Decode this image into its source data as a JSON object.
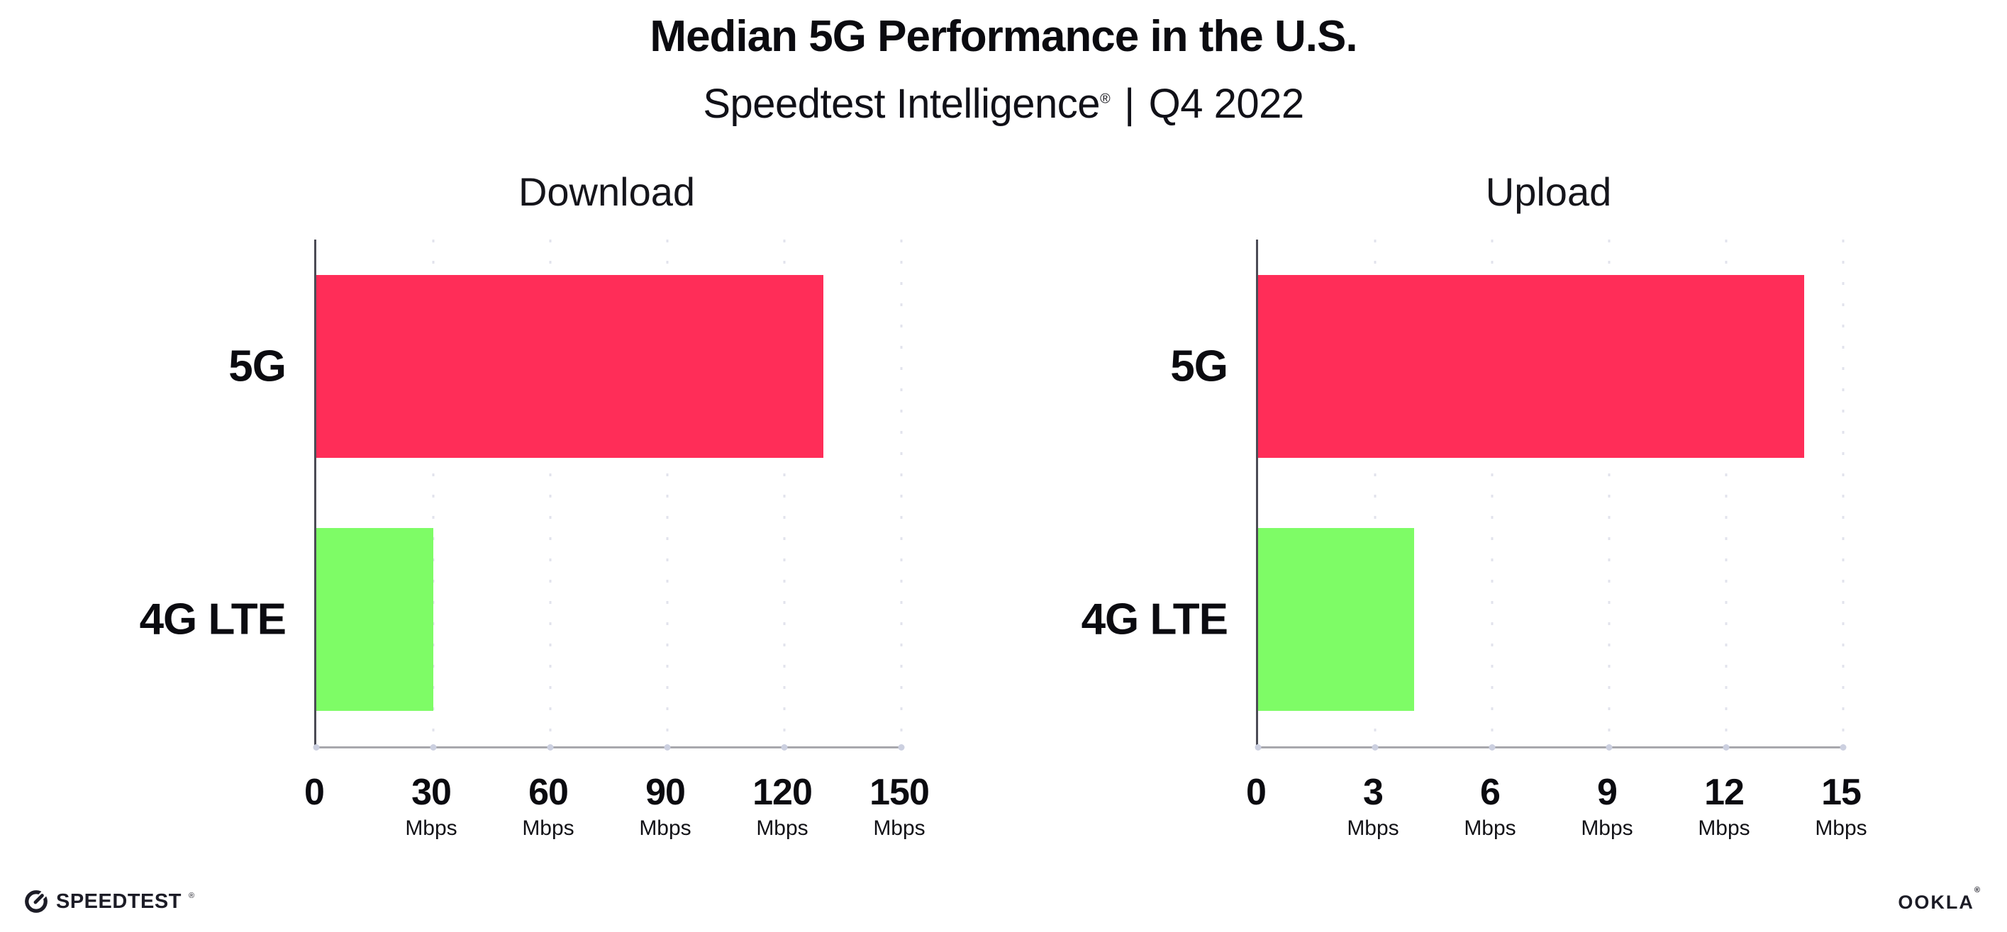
{
  "header": {
    "title": "Median 5G Performance in the U.S.",
    "subtitle_brand": "Speedtest Intelligence",
    "subtitle_reg": "®",
    "subtitle_separator": "|",
    "subtitle_period": "Q4 2022"
  },
  "colors": {
    "bar_5g": "#FF2D58",
    "bar_4g_lte": "#7EFC66",
    "axis_spine": "#4b4b55",
    "axis_baseline": "#a8a8ad",
    "gridline": "#e2e3ec",
    "tick_dot": "#ccd0e0",
    "text": "#0b0b10"
  },
  "chart_data": [
    {
      "type": "bar",
      "orientation": "horizontal",
      "title": "Download",
      "categories": [
        "5G",
        "4G LTE"
      ],
      "values": [
        130,
        30
      ],
      "unit": "Mbps",
      "xlim": [
        0,
        150
      ],
      "xticks": [
        0,
        30,
        60,
        90,
        120,
        150
      ],
      "bar_colors": [
        "#FF2D58",
        "#7EFC66"
      ],
      "grid": "dotted-vertical",
      "legend": "none"
    },
    {
      "type": "bar",
      "orientation": "horizontal",
      "title": "Upload",
      "categories": [
        "5G",
        "4G LTE"
      ],
      "values": [
        14,
        4
      ],
      "unit": "Mbps",
      "xlim": [
        0,
        15
      ],
      "xticks": [
        0,
        3,
        6,
        9,
        12,
        15
      ],
      "bar_colors": [
        "#FF2D58",
        "#7EFC66"
      ],
      "grid": "dotted-vertical",
      "legend": "none"
    }
  ],
  "footer": {
    "speedtest_logo_text": "SPEEDTEST",
    "speedtest_reg": "®",
    "ookla_logo_text": "OOKLA",
    "ookla_reg": "®"
  }
}
